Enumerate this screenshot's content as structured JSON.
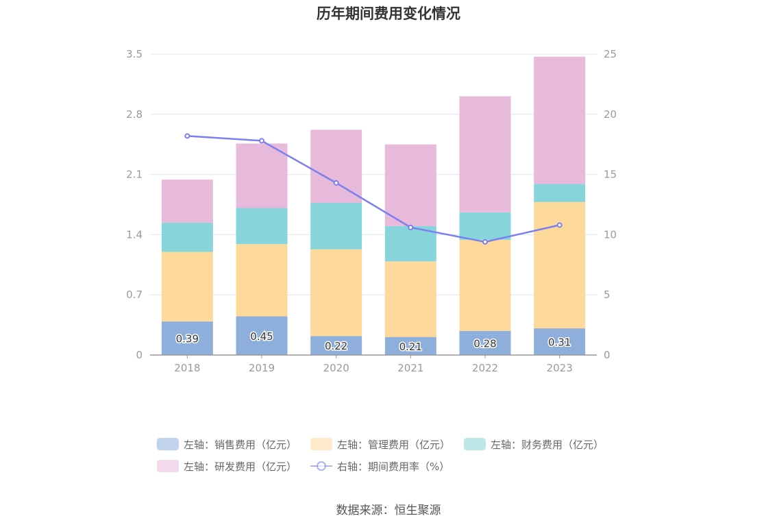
{
  "title": "历年期间费用变化情况",
  "source": "数据来源：恒生聚源",
  "chart_data": {
    "type": "bar",
    "stacked": true,
    "categories": [
      "2018",
      "2019",
      "2020",
      "2021",
      "2022",
      "2023"
    ],
    "series": [
      {
        "name": "左轴：销售费用（亿元）",
        "axis": "left",
        "color": "#8eaedb",
        "values": [
          0.39,
          0.45,
          0.22,
          0.21,
          0.28,
          0.31
        ],
        "show_labels": true
      },
      {
        "name": "左轴：管理费用（亿元）",
        "axis": "left",
        "color": "#fed99c",
        "values": [
          0.81,
          0.84,
          1.01,
          0.88,
          1.06,
          1.47
        ]
      },
      {
        "name": "左轴：财务费用（亿元）",
        "axis": "left",
        "color": "#87d5da",
        "values": [
          0.34,
          0.42,
          0.54,
          0.41,
          0.32,
          0.21
        ]
      },
      {
        "name": "左轴：研发费用（亿元）",
        "axis": "left",
        "color": "#e7b9da",
        "values": [
          0.5,
          0.75,
          0.85,
          0.95,
          1.35,
          1.48
        ]
      }
    ],
    "line_series": {
      "name": "右轴：期间费用率（%）",
      "type": "line",
      "axis": "right",
      "color": "#7b7fee",
      "values": [
        18.2,
        17.8,
        14.3,
        10.6,
        9.4,
        10.8
      ]
    },
    "y_left": {
      "min": 0,
      "max": 3.5,
      "ticks": [
        "0",
        "0.7",
        "1.4",
        "2.1",
        "2.8",
        "3.5"
      ]
    },
    "y_right": {
      "min": 0,
      "max": 25,
      "ticks": [
        "0",
        "5",
        "10",
        "15",
        "20",
        "25"
      ]
    },
    "grid": true,
    "legend_position": "bottom"
  }
}
